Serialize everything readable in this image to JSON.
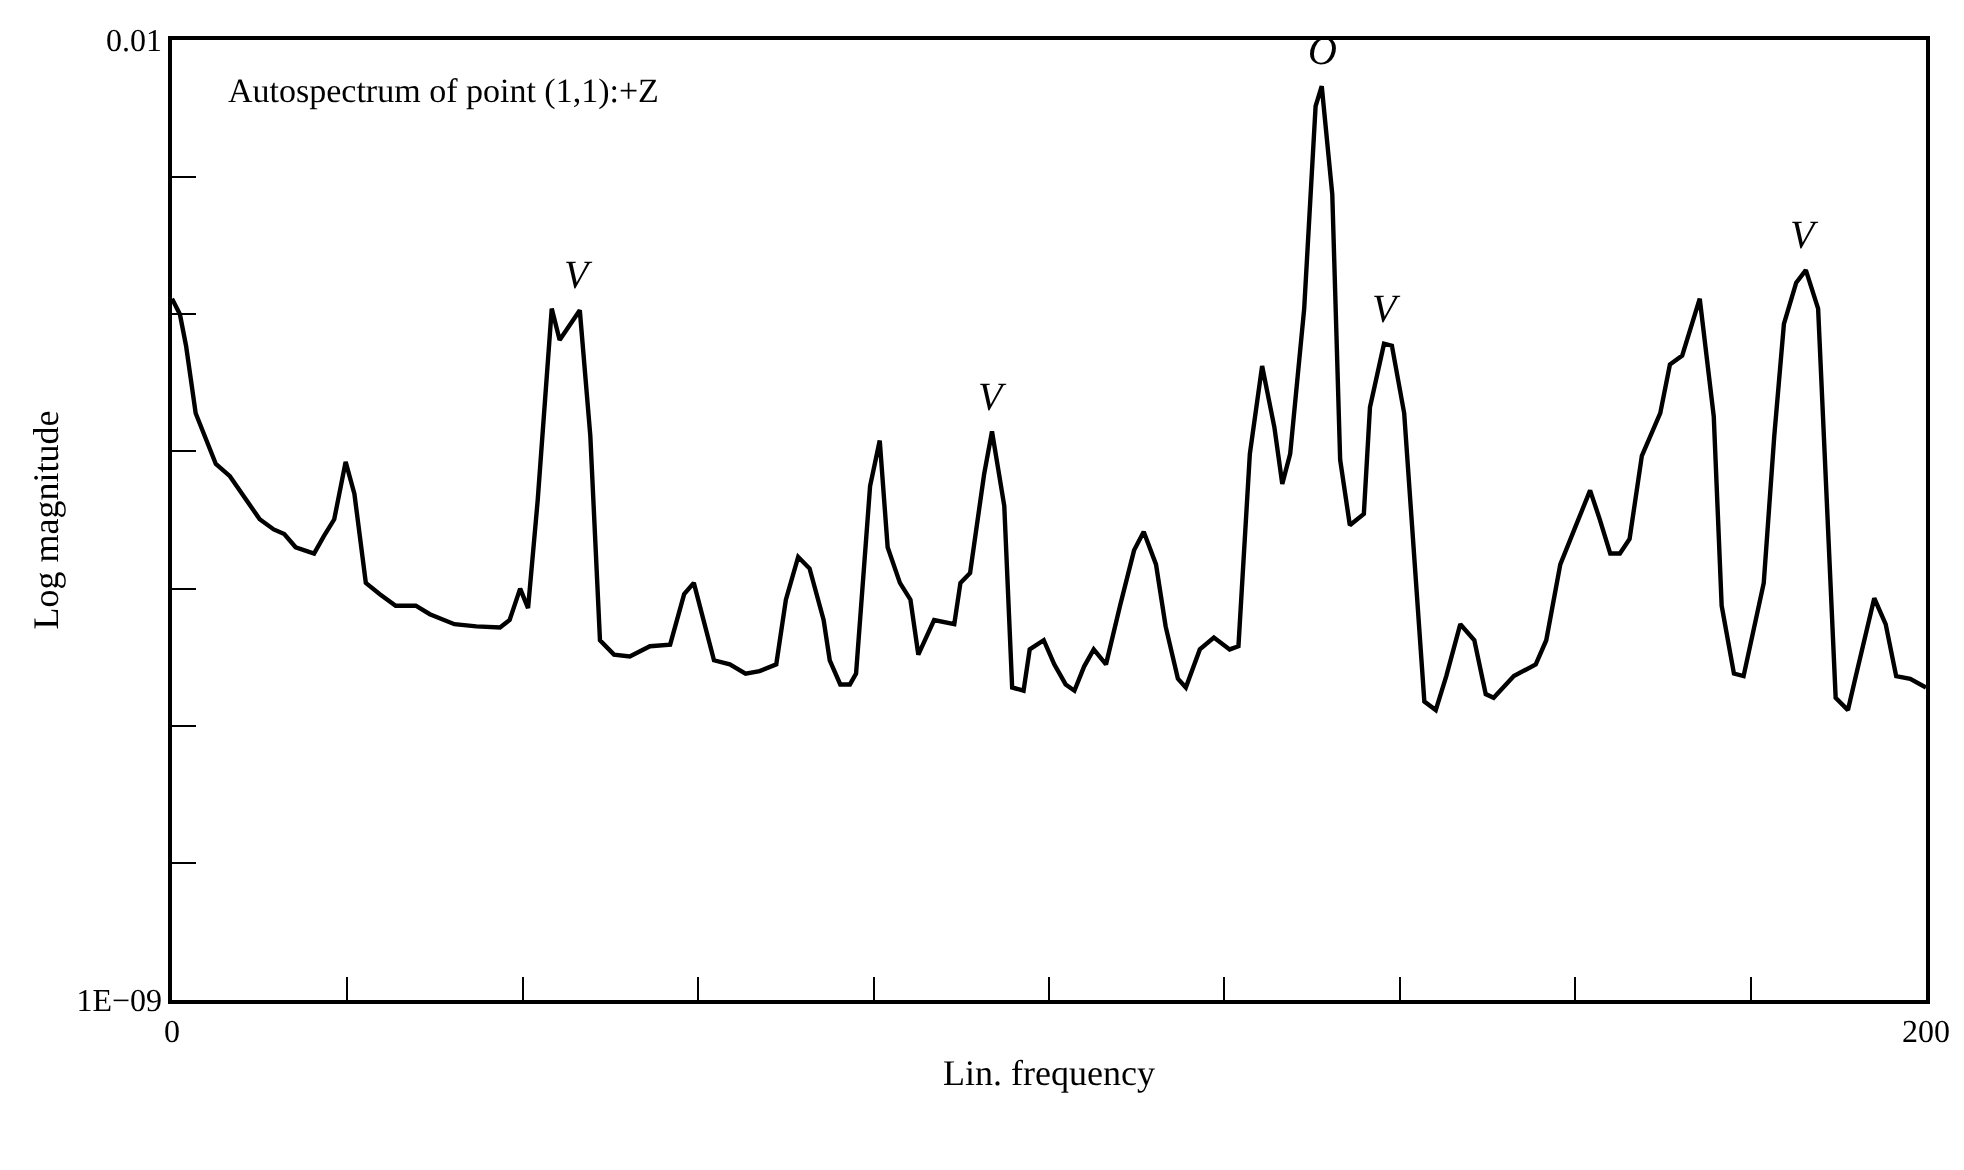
{
  "chart_data": {
    "type": "line",
    "title": "Autospectrum of point (1,1):+Z",
    "xlabel": "Lin. frequency",
    "ylabel": "Log magnitude",
    "log": "y",
    "grid": false,
    "marker": "none",
    "line_style": "solid",
    "xlim": [
      0,
      200
    ],
    "xticks": [
      0,
      {
        "value": 20,
        "label": null
      },
      {
        "value": 40,
        "label": null
      },
      {
        "value": 60,
        "label": null
      },
      {
        "value": 80,
        "label": null
      },
      {
        "value": 100,
        "label": null
      },
      {
        "value": 120,
        "label": null
      },
      {
        "value": 140,
        "label": null
      },
      {
        "value": 160,
        "label": null
      },
      {
        "value": 180,
        "label": null
      },
      200
    ],
    "ylim": [
      1e-09,
      0.01
    ],
    "yticks": [
      {
        "value": 1e-09,
        "label": "1E−09"
      },
      {
        "value": 1e-08,
        "label": null
      },
      {
        "value": 1e-07,
        "label": null
      },
      {
        "value": 1e-06,
        "label": null
      },
      {
        "value": 1e-05,
        "label": null
      },
      {
        "value": 0.0001,
        "label": null
      },
      {
        "value": 0.001,
        "label": null
      },
      0.01
    ],
    "x": [
      0,
      0.9,
      1.6,
      2.7,
      5.0,
      6.6,
      8.2,
      10.0,
      11.6,
      12.8,
      14.1,
      16.2,
      17.3,
      18.5,
      19.8,
      20.8,
      22.1,
      23.7,
      25.5,
      27.8,
      29.4,
      32.2,
      34.7,
      37.4,
      38.5,
      39.7,
      40.6,
      41.7,
      43.3,
      44.2,
      46.5,
      47.7,
      48.8,
      50.4,
      52.2,
      54.5,
      56.8,
      58.4,
      59.5,
      61.8,
      63.6,
      65.4,
      67.0,
      68.9,
      70.0,
      71.4,
      72.7,
      74.3,
      75.0,
      76.2,
      77.3,
      78.0,
      79.6,
      80.7,
      81.6,
      83.0,
      84.2,
      85.1,
      86.9,
      89.2,
      89.9,
      91.0,
      92.6,
      93.5,
      94.9,
      95.8,
      97.1,
      97.8,
      99.4,
      100.6,
      101.9,
      102.9,
      104.0,
      105.1,
      106.5,
      108.1,
      109.7,
      110.8,
      112.2,
      113.3,
      114.7,
      115.6,
      117.2,
      118.8,
      120.6,
      121.6,
      122.9,
      124.3,
      125.7,
      126.6,
      127.5,
      129.1,
      130.4,
      131.1,
      132.3,
      133.2,
      134.3,
      135.9,
      136.6,
      138.2,
      139.1,
      140.5,
      142.8,
      144.1,
      145.3,
      146.9,
      148.5,
      149.8,
      150.7,
      153.0,
      155.5,
      156.7,
      158.3,
      160.1,
      161.7,
      162.8,
      164.0,
      165.1,
      166.2,
      167.6,
      169.7,
      170.8,
      172.2,
      174.2,
      175.8,
      176.7,
      178.1,
      179.2,
      181.5,
      182.7,
      183.8,
      185.2,
      186.3,
      187.7,
      189.7,
      191.1,
      192.0,
      194.1,
      195.4,
      196.6,
      198.2,
      200
    ],
    "series": [
      {
        "color": "#000000",
        "values": [
          0.00013,
          0.0001,
          5.9e-05,
          1.9e-05,
          8.1e-06,
          6.6e-06,
          4.7e-06,
          3.2e-06,
          2.7e-06,
          2.5e-06,
          2e-06,
          1.8e-06,
          2.4e-06,
          3.2e-06,
          8.4e-06,
          4.9e-06,
          1.1e-06,
          9.1e-07,
          7.5e-07,
          7.5e-07,
          6.5e-07,
          5.5e-07,
          5.3e-07,
          5.2e-07,
          5.9e-07,
          1e-06,
          7.2e-07,
          4.4e-06,
          0.00011,
          6.5e-05,
          0.000107,
          1.3e-05,
          4.2e-07,
          3.3e-07,
          3.2e-07,
          3.8e-07,
          3.9e-07,
          9.1e-07,
          1.1e-06,
          3e-07,
          2.8e-07,
          2.4e-07,
          2.5e-07,
          2.8e-07,
          8.3e-07,
          1.7e-06,
          1.4e-06,
          5.9e-07,
          3e-07,
          2e-07,
          2e-07,
          2.4e-07,
          5.6e-06,
          1.2e-05,
          2e-06,
          1.1e-06,
          8.3e-07,
          3.3e-07,
          5.9e-07,
          5.5e-07,
          1.1e-06,
          1.3e-06,
          6.8e-06,
          1.4e-05,
          4e-06,
          1.9e-07,
          1.8e-07,
          3.6e-07,
          4.2e-07,
          2.8e-07,
          2e-07,
          1.8e-07,
          2.7e-07,
          3.6e-07,
          2.8e-07,
          7.5e-07,
          1.9e-06,
          2.6e-06,
          1.5e-06,
          5.3e-07,
          2.2e-07,
          1.9e-07,
          3.6e-07,
          4.4e-07,
          3.6e-07,
          3.8e-07,
          9.6e-06,
          4.2e-05,
          1.5e-05,
          5.8e-06,
          9.6e-06,
          0.00011,
          0.0033,
          0.0046,
          0.00075,
          8.7e-06,
          2.9e-06,
          3.5e-06,
          2.1e-05,
          6.1e-05,
          5.9e-05,
          1.9e-05,
          1.5e-07,
          1.3e-07,
          2.3e-07,
          5.5e-07,
          4.2e-07,
          1.7e-07,
          1.6e-07,
          2.3e-07,
          2.8e-07,
          4.2e-07,
          1.5e-06,
          2.9e-06,
          5.2e-06,
          3.2e-06,
          1.8e-06,
          1.8e-06,
          2.3e-06,
          9.3e-06,
          1.9e-05,
          4.3e-05,
          5e-05,
          0.00013,
          1.8e-05,
          7.5e-07,
          2.4e-07,
          2.3e-07,
          1.1e-06,
          1.3e-05,
          8.5e-05,
          0.00017,
          0.00021,
          0.00011,
          1.6e-07,
          1.3e-07,
          2.3e-07,
          8.5e-07,
          5.5e-07,
          2.3e-07,
          2.2e-07,
          1.9e-07
        ]
      }
    ],
    "annotations": [
      {
        "text": "V",
        "x": 46.5,
        "y": 0.000107
      },
      {
        "text": "V",
        "x": 93.5,
        "y": 1.4e-05
      },
      {
        "text": "O",
        "x": 131.1,
        "y": 0.0046
      },
      {
        "text": "V",
        "x": 138.6,
        "y": 6.1e-05
      },
      {
        "text": "V",
        "x": 186.3,
        "y": 0.00021
      }
    ]
  }
}
